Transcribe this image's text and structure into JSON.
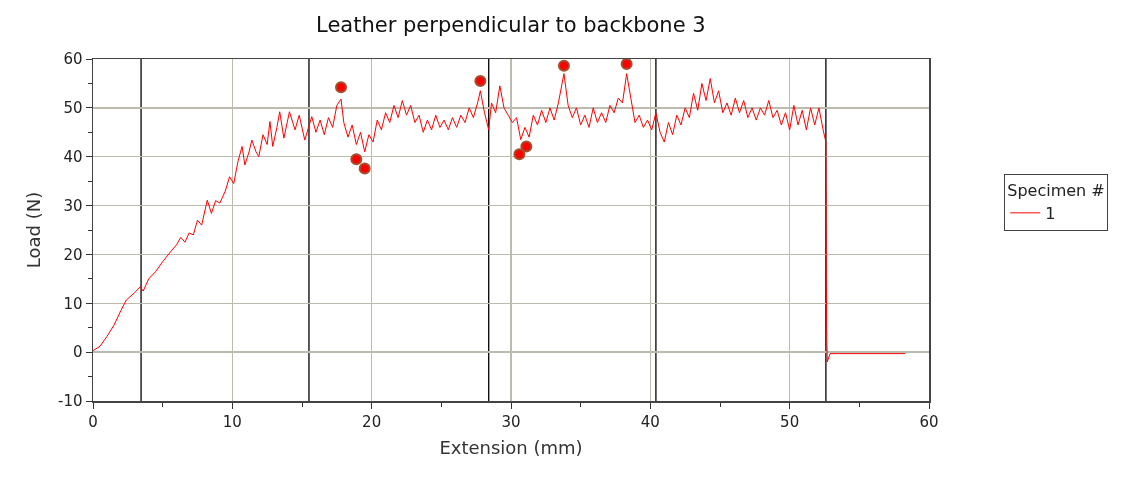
{
  "chart_data": {
    "type": "line",
    "title": "Leather perpendicular to backbone 3",
    "xlabel": "Extension (mm)",
    "ylabel": "Load (N)",
    "legend_title": "Specimen #",
    "legend": "right",
    "grid": true,
    "marker": "none",
    "line_style": "solid",
    "xlim": [
      0,
      60
    ],
    "ylim": [
      -10,
      60
    ],
    "xticks": [
      0,
      {
        "value": 5,
        "label": null
      },
      10,
      {
        "value": 15,
        "label": null
      },
      20,
      {
        "value": 25,
        "label": null
      },
      30,
      {
        "value": 35,
        "label": null
      },
      40,
      {
        "value": 45,
        "label": null
      },
      50,
      {
        "value": 55,
        "label": null
      },
      60
    ],
    "yticks": [
      -10,
      {
        "value": -5,
        "label": null
      },
      0,
      {
        "value": 5,
        "label": null
      },
      10,
      {
        "value": 15,
        "label": null
      },
      20,
      {
        "value": 25,
        "label": null
      },
      30,
      {
        "value": 35,
        "label": null
      },
      40,
      {
        "value": 45,
        "label": null
      },
      50,
      {
        "value": 55,
        "label": null
      },
      60
    ],
    "ref_lines": [
      {
        "axis": "x",
        "value": 3.45,
        "color": "#000000"
      },
      {
        "axis": "x",
        "value": 15.5,
        "color": "#000000"
      },
      {
        "axis": "x",
        "value": 28.4,
        "color": "#000000"
      },
      {
        "axis": "x",
        "value": 40.4,
        "color": "#000000"
      },
      {
        "axis": "x",
        "value": 52.6,
        "color": "#000000"
      }
    ],
    "series": [
      {
        "name": "1",
        "color": "#ff0000",
        "x": [
          0,
          0.5,
          1.0,
          1.5,
          2.0,
          2.4,
          3.0,
          3.4,
          3.6,
          4.0,
          4.5,
          5.0,
          5.5,
          6.0,
          6.3,
          6.6,
          6.9,
          7.2,
          7.5,
          7.8,
          8.2,
          8.5,
          8.8,
          9.1,
          9.5,
          9.8,
          10.1,
          10.4,
          10.7,
          10.9,
          11.2,
          11.4,
          11.7,
          11.9,
          12.2,
          12.5,
          12.7,
          12.9,
          13.2,
          13.4,
          13.7,
          14.1,
          14.5,
          14.8,
          15.2,
          15.7,
          16.0,
          16.3,
          16.6,
          16.9,
          17.2,
          17.5,
          17.8,
          18.0,
          18.3,
          18.6,
          18.9,
          19.2,
          19.5,
          19.8,
          20.1,
          20.4,
          20.7,
          21.0,
          21.3,
          21.6,
          21.9,
          22.2,
          22.5,
          22.8,
          23.1,
          23.4,
          23.7,
          24.0,
          24.3,
          24.6,
          24.9,
          25.2,
          25.5,
          25.8,
          26.1,
          26.4,
          26.7,
          27.0,
          27.3,
          27.6,
          27.8,
          28.1,
          28.4,
          28.6,
          28.9,
          29.2,
          29.5,
          29.8,
          30.1,
          30.4,
          30.7,
          31.0,
          31.3,
          31.6,
          31.9,
          32.2,
          32.5,
          32.8,
          33.1,
          33.4,
          33.8,
          34.1,
          34.4,
          34.7,
          35.0,
          35.3,
          35.6,
          35.9,
          36.2,
          36.5,
          36.8,
          37.1,
          37.4,
          37.7,
          38.0,
          38.3,
          38.6,
          38.9,
          39.2,
          39.5,
          39.8,
          40.1,
          40.4,
          40.7,
          41.0,
          41.3,
          41.6,
          41.9,
          42.2,
          42.5,
          42.8,
          43.1,
          43.4,
          43.7,
          44.0,
          44.3,
          44.6,
          44.9,
          45.2,
          45.5,
          45.8,
          46.1,
          46.4,
          46.7,
          47.0,
          47.3,
          47.6,
          47.9,
          48.2,
          48.5,
          48.8,
          49.1,
          49.4,
          49.7,
          50.0,
          50.3,
          50.6,
          50.9,
          51.2,
          51.5,
          51.8,
          52.1,
          52.4,
          52.6,
          52.65,
          52.7,
          52.9,
          53.5,
          58.3
        ],
        "values": [
          0.3,
          1.2,
          3.2,
          5.5,
          8.5,
          10.7,
          12.2,
          13.4,
          12.5,
          15.0,
          16.5,
          18.5,
          20.3,
          22.0,
          23.5,
          22.5,
          24.4,
          24.0,
          27.0,
          26.0,
          31.1,
          28.4,
          31.0,
          30.5,
          33.0,
          35.9,
          34.5,
          39.0,
          42.1,
          38.3,
          41.0,
          43.4,
          41.0,
          40.0,
          44.5,
          42.5,
          47.2,
          42.1,
          46.0,
          49.2,
          43.8,
          49.2,
          45.5,
          48.5,
          43.4,
          48.2,
          45.0,
          47.5,
          44.5,
          48.0,
          46.0,
          50.5,
          51.8,
          47.0,
          44.0,
          46.5,
          42.5,
          45.0,
          41.0,
          44.5,
          43.0,
          47.5,
          45.5,
          49.0,
          47.0,
          50.5,
          48.0,
          51.5,
          48.5,
          50.5,
          47.0,
          48.5,
          45.0,
          47.5,
          45.5,
          48.5,
          46.0,
          47.5,
          45.5,
          48.0,
          46.0,
          48.5,
          47.0,
          50.0,
          48.0,
          51.0,
          53.5,
          49.0,
          45.5,
          51.0,
          49.0,
          54.5,
          50.0,
          48.5,
          47.0,
          48.0,
          43.5,
          46.0,
          44.0,
          48.5,
          46.5,
          49.5,
          47.0,
          50.0,
          47.5,
          51.0,
          57.0,
          50.5,
          48.0,
          50.0,
          46.5,
          48.5,
          46.0,
          50.0,
          47.0,
          49.0,
          47.0,
          50.5,
          49.0,
          52.0,
          51.0,
          57.0,
          52.0,
          47.0,
          48.5,
          46.0,
          47.5,
          45.5,
          49.0,
          45.0,
          43.0,
          47.0,
          44.5,
          48.5,
          46.5,
          50.0,
          48.0,
          53.0,
          49.5,
          55.0,
          51.5,
          56.0,
          51.0,
          53.5,
          49.0,
          51.0,
          48.5,
          52.0,
          49.0,
          51.5,
          48.0,
          50.0,
          47.5,
          50.0,
          48.5,
          51.5,
          48.0,
          49.5,
          46.5,
          49.0,
          45.5,
          50.5,
          46.5,
          49.5,
          45.5,
          50.0,
          46.5,
          50.0,
          45.5,
          43.0,
          5.0,
          -2.0,
          -0.3,
          -0.3,
          -0.3
        ]
      },
      {
        "type": "scatter",
        "marker": "circle",
        "color": "#ff0000",
        "x": [
          17.8,
          18.9,
          19.5,
          27.8,
          30.6,
          31.1,
          33.8,
          38.3
        ],
        "values": [
          54.2,
          39.5,
          37.6,
          55.5,
          40.5,
          42.1,
          58.6,
          59.0
        ]
      }
    ]
  }
}
